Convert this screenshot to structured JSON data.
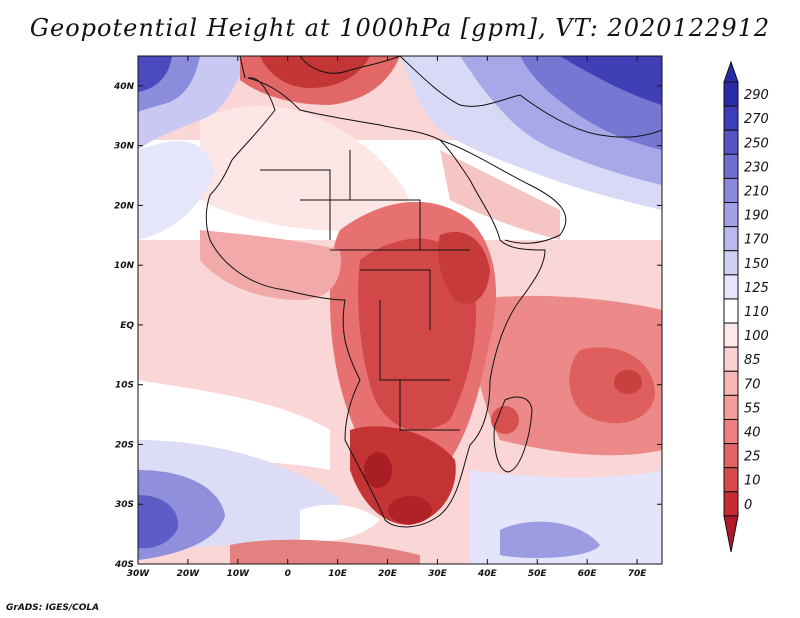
{
  "title": "Geopotential Height at 1000hPa [gpm], VT: 2020122912",
  "credit": "GrADS: IGES/COLA",
  "map": {
    "lon_range": [
      -30,
      75
    ],
    "lat_range": [
      -40,
      45
    ],
    "lon_ticks": [
      "30W",
      "20W",
      "10W",
      "0",
      "10E",
      "20E",
      "30E",
      "40E",
      "50E",
      "60E",
      "70E"
    ],
    "lat_ticks": [
      "40S",
      "30S",
      "20S",
      "10S",
      "EQ",
      "10N",
      "20N",
      "30N",
      "40N"
    ]
  },
  "colorbar": {
    "levels": [
      "0",
      "10",
      "25",
      "40",
      "55",
      "70",
      "85",
      "100",
      "110",
      "125",
      "150",
      "170",
      "190",
      "210",
      "230",
      "250",
      "270",
      "290"
    ],
    "colors": [
      "#b2182b",
      "#c62c35",
      "#d64a4a",
      "#e26363",
      "#ec8080",
      "#f29c9c",
      "#f6b6b6",
      "#fad0d0",
      "#fde9e9",
      "#ffffff",
      "#e6e6fb",
      "#d0d0f5",
      "#b9b9ef",
      "#a1a1e6",
      "#8888dd",
      "#6f6fd3",
      "#5555c8",
      "#3d3dba",
      "#2a2aa8"
    ]
  }
}
